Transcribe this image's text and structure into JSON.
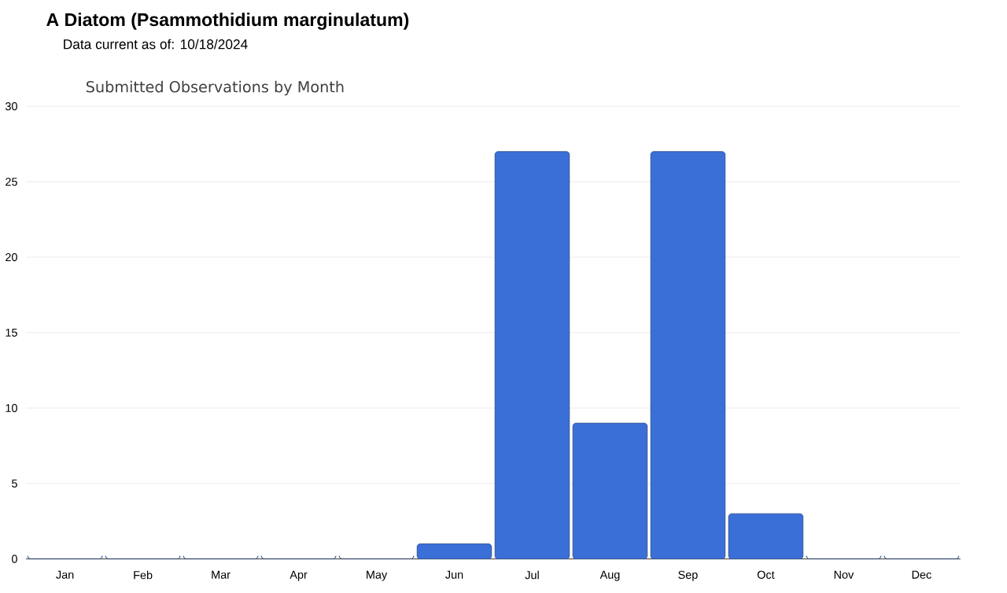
{
  "chart_data": {
    "type": "bar",
    "title": "A Diatom   (Psammothidium marginulatum)",
    "subtitle": "Data current as of: 10/18/2024",
    "annotations": [
      "Submitted Observations by Month"
    ],
    "categories": [
      "Jan",
      "Feb",
      "Mar",
      "Apr",
      "May",
      "Jun",
      "Jul",
      "Aug",
      "Sep",
      "Oct",
      "Nov",
      "Dec"
    ],
    "values": [
      0,
      0,
      0,
      0,
      0,
      1,
      27,
      9,
      27,
      3,
      0,
      0
    ],
    "color": "#3a6fd8",
    "ylim": [
      0,
      30
    ],
    "yticks": [
      0,
      5,
      10,
      15,
      20,
      25,
      30
    ],
    "grid": "y"
  }
}
